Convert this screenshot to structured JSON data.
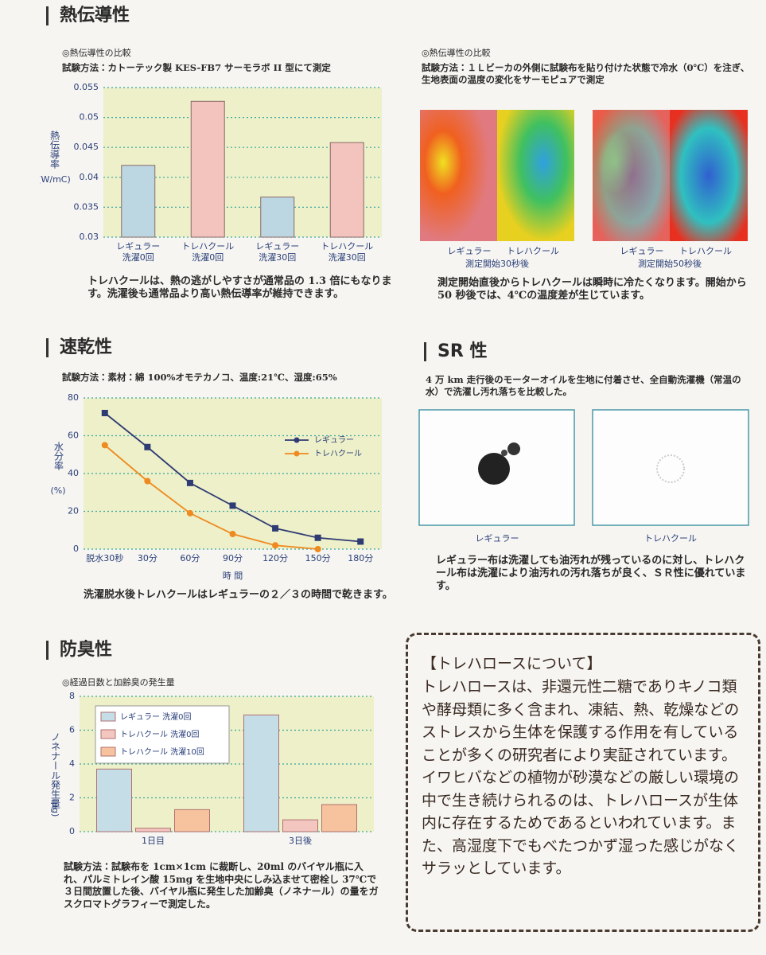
{
  "chart_data": [
    {
      "type": "bar",
      "y_label": "熱伝導率",
      "y_label_unit": "(W/mC)",
      "categories": [
        [
          "レギュラー",
          "洗濯0回"
        ],
        [
          "トレハクール",
          "洗濯0回"
        ],
        [
          "レギュラー",
          "洗濯30回"
        ],
        [
          "トレハクール",
          "洗濯30回"
        ]
      ],
      "values": [
        0.042,
        0.0527,
        0.0367,
        0.0458
      ],
      "colors": [
        "#bcd7e2",
        "#f3c3bd",
        "#bcd7e2",
        "#f3c3bd"
      ],
      "ylim": [
        0.03,
        0.055
      ],
      "yticks": [
        0.03,
        0.035,
        0.04,
        0.045,
        0.05,
        0.055
      ],
      "grid": true
    },
    {
      "type": "line",
      "y_label": "水分率",
      "y_label_unit": "(%)",
      "x_label": "時 間",
      "categories": [
        "脱水30秒",
        "30分",
        "60分",
        "90分",
        "120分",
        "150分",
        "180分"
      ],
      "series": [
        {
          "name": "レギュラー",
          "color": "#2f3b73",
          "values": [
            72,
            54,
            35,
            23,
            11,
            6,
            4
          ]
        },
        {
          "name": "トレハクール",
          "color": "#ee8a1f",
          "values": [
            55,
            36,
            19,
            8,
            2,
            0,
            null
          ]
        }
      ],
      "ylim": [
        0,
        80
      ],
      "yticks": [
        0,
        20,
        40,
        60,
        80
      ],
      "grid": true
    },
    {
      "type": "grouped_bar",
      "y_label": "ノネナール発生量",
      "y_label_unit": "(μg)",
      "categories": [
        "1日目",
        "3日後"
      ],
      "series": [
        {
          "name": "レギュラー 洗濯0回",
          "color": "#c5dde7",
          "values": [
            3.7,
            6.9
          ]
        },
        {
          "name": "トレハクール 洗濯0回",
          "color": "#f4c6c0",
          "values": [
            0.2,
            0.7
          ]
        },
        {
          "name": "トレハクール 洗濯10回",
          "color": "#f6c39e",
          "values": [
            1.3,
            1.6
          ]
        }
      ],
      "ylim": [
        0,
        8
      ],
      "yticks": [
        0,
        2,
        4,
        6,
        8
      ],
      "grid": true
    }
  ],
  "thermal": {
    "heading": "熱伝導性",
    "subtitle": "◎熱伝導性の比較",
    "method": "試験方法：カトーテック製 KES-FB7 サーモラボ II 型にて測定",
    "caption": "トレハクールは、熱の逃がしやすさが通常品の 1.3 倍にもなります。洗濯後も通常品より高い熱伝導率が維持できます。"
  },
  "thermo_images": {
    "subtitle": "◎熱伝導性の比較",
    "method": "試験方法：１Ｌビーカの外側に試験布を貼り付けた状態で冷水（0℃）を注ぎ、生地表面の温度の変化をサーモピュアで測定",
    "images": [
      {
        "labels": [
          "レギュラー",
          "トレハクール"
        ],
        "time": "測定開始30秒後"
      },
      {
        "labels": [
          "レギュラー",
          "トレハクール"
        ],
        "time": "測定開始50秒後"
      }
    ],
    "caption": "測定開始直後からトレハクールは瞬時に冷たくなります。開始から 50 秒後では、4℃の温度差が生じています。"
  },
  "quick_dry": {
    "heading": "速乾性",
    "method": "試験方法：素材：綿 100%オモテカノコ、温度:21℃、湿度:65%",
    "caption": "洗濯脱水後トレハクールはレギュラーの２／３の時間で乾きます。"
  },
  "sr": {
    "heading": "SR 性",
    "text": "4 万 km 走行後のモーターオイルを生地に付着させ、全自動洗濯機（常温の水）で洗濯し汚れ落ちを比較した。",
    "labels": [
      "レギュラー",
      "トレハクール"
    ],
    "caption": "レギュラー布は洗濯しても油汚れが残っているのに対し、トレハクール布は洗濯により油汚れの汚れ落ちが良く、ＳＲ性に優れています。"
  },
  "deodorant": {
    "heading": "防臭性",
    "subtitle": "◎経過日数と加齢臭の発生量",
    "caption": "試験方法：試験布を 1cm×1cm に裁断し、20ml のバイヤル瓶に入れ、パルミトレイン酸 15mg を生地中央にしみ込ませて密栓し 37℃で３日間放置した後、バイヤル瓶に発生した加齢臭（ノネナール）の量をガスクロマトグラフィーで測定した。"
  },
  "trehalose": {
    "title": "【トレハロースについて】",
    "body": "トレハロースは、非還元性二糖でありキノコ類や酵母類に多く含まれ、凍結、熱、乾燥などのストレスから生体を保護する作用を有していることが多くの研究者により実証されています。イワヒバなどの植物が砂漠などの厳しい環境の中で生き続けられるのは、トレハロースが生体内に存在するためであるといわれています。また、高湿度下でもべたつかず湿った感じがなくサラッとしています。"
  }
}
